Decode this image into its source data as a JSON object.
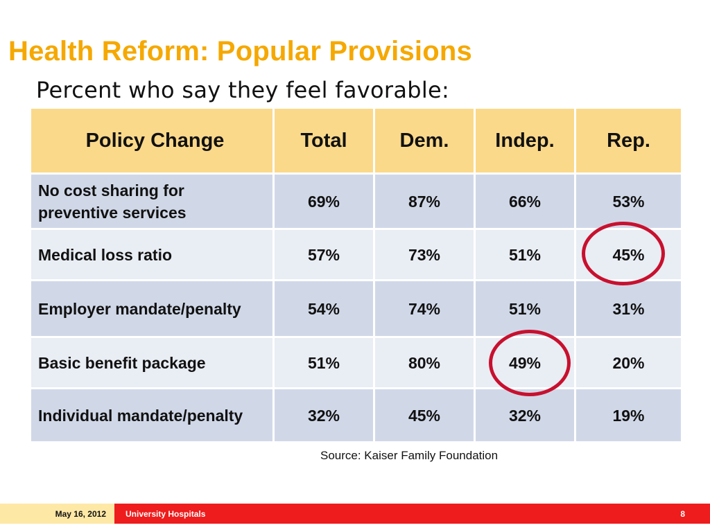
{
  "slide": {
    "title": "Health Reform: Popular Provisions",
    "subtitle": "Percent who say they feel favorable:"
  },
  "table": {
    "headers": [
      "Policy Change",
      "Total",
      "Dem.",
      "Indep.",
      "Rep."
    ],
    "rows": [
      {
        "policy": "No cost sharing for preventive services",
        "total": "69%",
        "dem": "87%",
        "indep": "66%",
        "rep": "53%"
      },
      {
        "policy": "Medical loss ratio",
        "total": "57%",
        "dem": "73%",
        "indep": "51%",
        "rep": "45%"
      },
      {
        "policy": "Employer mandate/penalty",
        "total": "54%",
        "dem": "74%",
        "indep": "51%",
        "rep": "31%"
      },
      {
        "policy": "Basic benefit package",
        "total": "51%",
        "dem": "80%",
        "indep": "49%",
        "rep": "20%"
      },
      {
        "policy": "Individual mandate/penalty",
        "total": "32%",
        "dem": "45%",
        "indep": "32%",
        "rep": "19%"
      }
    ]
  },
  "source": "Source: Kaiser Family Foundation",
  "footer": {
    "date": "May 16, 2012",
    "organization": "University Hospitals",
    "page_number": "8"
  },
  "colors": {
    "title": "#f5a800",
    "header_fill": "#fbd98a",
    "row_dark": "#d0d8e8",
    "row_light": "#e9edf4",
    "highlight_circle": "#c8102e",
    "footer_red": "#ee1c1c",
    "footer_yellow": "#fde8a6"
  }
}
